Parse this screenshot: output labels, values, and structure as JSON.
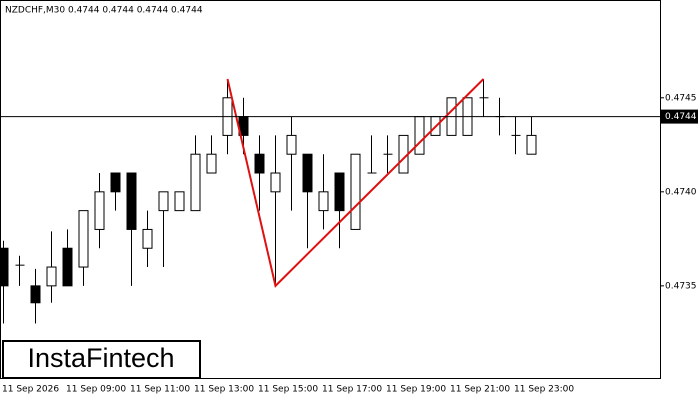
{
  "chart_data": {
    "type": "candlestick",
    "title": "NZDCHF,M30  0.4744 0.4744 0.4744 0.4744",
    "categories": [
      "11 Sep 2026",
      null,
      null,
      null,
      "11 Sep 09:00",
      null,
      null,
      null,
      "11 Sep 11:00",
      null,
      null,
      null,
      "11 Sep 13:00",
      null,
      null,
      null,
      "11 Sep 15:00",
      null,
      null,
      null,
      "11 Sep 17:00",
      null,
      null,
      null,
      "11 Sep 19:00",
      null,
      null,
      null,
      "11 Sep 21:00",
      null,
      null,
      null,
      "11 Sep 23:00",
      null
    ],
    "open": [
      0.4737,
      0.47361,
      0.4735,
      0.4735,
      0.4737,
      0.4736,
      0.4738,
      0.4741,
      0.4741,
      0.4737,
      0.4739,
      0.4739,
      0.4739,
      0.4741,
      0.4743,
      0.4744,
      0.4742,
      0.474,
      0.4742,
      0.4742,
      0.4739,
      0.4741,
      0.4738,
      0.4741,
      0.4742,
      0.4741,
      0.4742,
      0.4743,
      0.4743,
      0.4743,
      0.4745,
      0.4744,
      0.4743,
      0.4742
    ],
    "high": [
      0.47374,
      0.47366,
      0.47359,
      0.47379,
      0.4738,
      0.4739,
      0.4741,
      0.4741,
      0.4741,
      0.4739,
      0.474,
      0.474,
      0.4743,
      0.4743,
      0.4746,
      0.4745,
      0.4743,
      0.4743,
      0.4744,
      0.4742,
      0.4742,
      0.4741,
      0.4742,
      0.4743,
      0.4743,
      0.4743,
      0.4744,
      0.4744,
      0.4745,
      0.4745,
      0.4746,
      0.4745,
      0.4744,
      0.4744
    ],
    "low": [
      0.4733,
      0.4735,
      0.4733,
      0.47341,
      0.4735,
      0.4735,
      0.4737,
      0.4739,
      0.4735,
      0.4736,
      0.4736,
      0.4739,
      0.4739,
      0.4741,
      0.4742,
      0.4742,
      0.4739,
      0.4735,
      0.4739,
      0.4737,
      0.4738,
      0.4737,
      0.4738,
      0.4741,
      0.4741,
      0.4741,
      0.4742,
      0.4743,
      0.4743,
      0.4743,
      0.4744,
      0.4743,
      0.4742,
      0.4742
    ],
    "close": [
      0.4735,
      0.47361,
      0.47341,
      0.4736,
      0.4735,
      0.4739,
      0.474,
      0.474,
      0.4738,
      0.4738,
      0.474,
      0.474,
      0.4742,
      0.4742,
      0.4745,
      0.4743,
      0.4741,
      0.4741,
      0.4743,
      0.474,
      0.474,
      0.4739,
      0.4742,
      0.4741,
      0.4742,
      0.4743,
      0.4744,
      0.4744,
      0.4745,
      0.4745,
      0.4745,
      0.4744,
      0.4743,
      0.4743
    ],
    "up_color": "#ffffff",
    "down_color": "#000000",
    "ylim": [
      0.47301,
      0.47502
    ],
    "yticks": [
      0.4735,
      {
        "value": 0.474,
        "label": "0.4740"
      },
      0.4745
    ],
    "last_price": 0.4744,
    "pattern": {
      "color": "#e01010",
      "x": [
        14,
        17,
        30
      ],
      "values": [
        0.4746,
        0.4735,
        0.4746
      ]
    }
  },
  "logo": "InstaFintech"
}
